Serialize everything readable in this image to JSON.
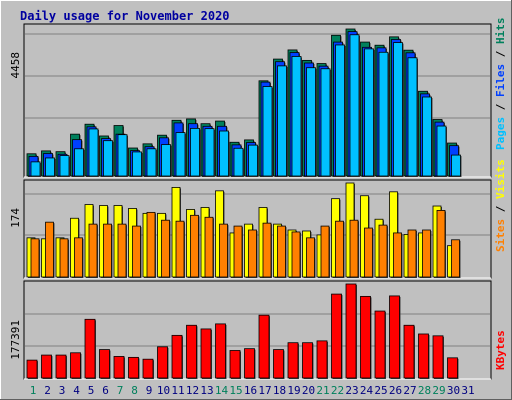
{
  "chart_data": [
    {
      "type": "bar",
      "title": "Daily usage for November 2020",
      "panel": "hits-files-pages",
      "ymax_label": "4458",
      "legend": [
        "Pages",
        "Files",
        "Hits"
      ],
      "categories": [
        "1",
        "2",
        "3",
        "4",
        "5",
        "6",
        "7",
        "8",
        "9",
        "10",
        "11",
        "12",
        "13",
        "14",
        "15",
        "16",
        "17",
        "18",
        "19",
        "20",
        "21",
        "22",
        "23",
        "24",
        "25",
        "26",
        "27",
        "28",
        "29",
        "30",
        "31"
      ],
      "series": [
        {
          "name": "Hits",
          "values": [
            850,
            960,
            930,
            1600,
            1980,
            1530,
            1930,
            1070,
            1230,
            1560,
            2130,
            2180,
            2000,
            2100,
            1290,
            1380,
            3640,
            4470,
            4820,
            4420,
            4300,
            5380,
            5620,
            5120,
            5000,
            5320,
            4810,
            3240,
            2160,
            1260,
            null
          ]
        },
        {
          "name": "Files",
          "values": [
            750,
            860,
            830,
            1390,
            1880,
            1430,
            1600,
            970,
            1120,
            1460,
            2030,
            2000,
            1900,
            1900,
            1190,
            1280,
            3590,
            4370,
            4720,
            4320,
            4200,
            5120,
            5520,
            4920,
            4900,
            5220,
            4710,
            3140,
            2060,
            1160,
            null
          ]
        },
        {
          "name": "Pages",
          "values": [
            540,
            690,
            780,
            1040,
            1800,
            1350,
            1580,
            920,
            1040,
            1200,
            1660,
            1820,
            1810,
            1720,
            1060,
            1180,
            3420,
            4210,
            4570,
            4140,
            4100,
            5010,
            5400,
            4860,
            4730,
            5100,
            4520,
            3020,
            1910,
            800,
            null
          ]
        }
      ],
      "colors": {
        "Hits": "#00805c",
        "Files": "#0040ff",
        "Pages": "#00c0ff"
      }
    },
    {
      "type": "bar",
      "panel": "visits-sites",
      "ymax_label": "174",
      "legend": [
        "Sites",
        "Visits"
      ],
      "categories": [
        "1",
        "2",
        "3",
        "4",
        "5",
        "6",
        "7",
        "8",
        "9",
        "10",
        "11",
        "12",
        "13",
        "14",
        "15",
        "16",
        "17",
        "18",
        "19",
        "20",
        "21",
        "22",
        "23",
        "24",
        "25",
        "26",
        "27",
        "28",
        "29",
        "30",
        "31"
      ],
      "series": [
        {
          "name": "Visits",
          "values": [
            80,
            78,
            80,
            120,
            148,
            146,
            146,
            140,
            130,
            130,
            183,
            138,
            142,
            176,
            90,
            108,
            142,
            108,
            96,
            94,
            86,
            160,
            192,
            166,
            118,
            174,
            87,
            90,
            145,
            64,
            null
          ]
        },
        {
          "name": "Sites",
          "values": [
            78,
            112,
            78,
            80,
            108,
            108,
            108,
            104,
            132,
            116,
            114,
            126,
            122,
            108,
            104,
            96,
            110,
            104,
            92,
            80,
            104,
            114,
            116,
            100,
            106,
            90,
            96,
            96,
            136,
            76,
            null
          ]
        }
      ],
      "colors": {
        "Visits": "#ffff00",
        "Sites": "#ff8000"
      }
    },
    {
      "type": "bar",
      "panel": "kbytes",
      "ymax_label": "177391",
      "legend": [
        "KBytes"
      ],
      "categories": [
        "1",
        "2",
        "3",
        "4",
        "5",
        "6",
        "7",
        "8",
        "9",
        "10",
        "11",
        "12",
        "13",
        "14",
        "15",
        "16",
        "17",
        "18",
        "19",
        "20",
        "21",
        "22",
        "23",
        "24",
        "25",
        "26",
        "27",
        "28",
        "29",
        "30",
        "31"
      ],
      "series": [
        {
          "name": "KBytes",
          "values": [
            39000,
            50000,
            50000,
            55000,
            128000,
            62000,
            47000,
            45000,
            41000,
            68000,
            93000,
            115000,
            107000,
            118000,
            60000,
            64000,
            137000,
            62000,
            77000,
            77000,
            81000,
            183000,
            205000,
            178000,
            146000,
            179000,
            115000,
            96000,
            92000,
            44000,
            null
          ]
        }
      ],
      "colors": {
        "KBytes": "#ff0000"
      }
    }
  ],
  "day_label_colors": {
    "weekday": "#000080",
    "weekend": "#00805c"
  },
  "weekend_days": [
    "1",
    "7",
    "8",
    "14",
    "15",
    "21",
    "22",
    "28",
    "29"
  ]
}
